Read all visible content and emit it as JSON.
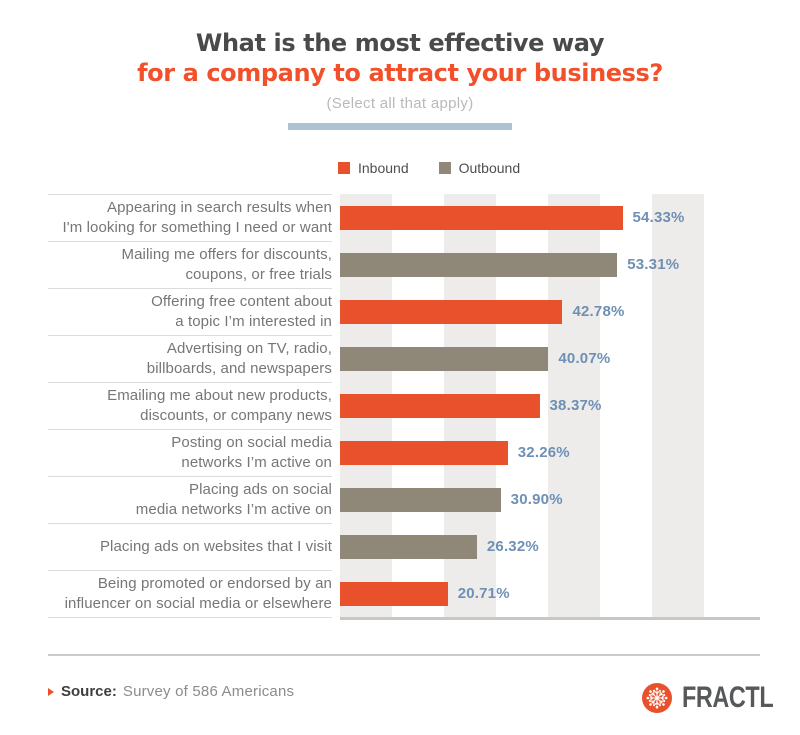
{
  "header": {
    "title_line1": "What is the most effective way",
    "title_line2": "for a company to attract your business?",
    "subtitle": "(Select all that apply)"
  },
  "legend": [
    {
      "label": "Inbound",
      "color": "#e8512c"
    },
    {
      "label": "Outbound",
      "color": "#8f8778"
    }
  ],
  "chart_data": {
    "type": "bar",
    "orientation": "horizontal",
    "title": "What is the most effective way for a company to attract your business?",
    "subtitle": "(Select all that apply)",
    "xlabel": "",
    "ylabel": "",
    "xlim": [
      0,
      70
    ],
    "grid_band_interval_percent": 10,
    "legend_position": "top",
    "series_colors": {
      "Inbound": "#e8512c",
      "Outbound": "#8f8778"
    },
    "rows": [
      {
        "label_lines": [
          "Appearing in search results when",
          "I'm looking for something I need or want"
        ],
        "series": "Inbound",
        "value": 54.33,
        "value_label": "54.33%"
      },
      {
        "label_lines": [
          "Mailing me offers for discounts,",
          "coupons, or free trials"
        ],
        "series": "Outbound",
        "value": 53.31,
        "value_label": "53.31%"
      },
      {
        "label_lines": [
          "Offering free content about",
          "a topic I’m interested in"
        ],
        "series": "Inbound",
        "value": 42.78,
        "value_label": "42.78%"
      },
      {
        "label_lines": [
          "Advertising on TV, radio,",
          "billboards, and newspapers"
        ],
        "series": "Outbound",
        "value": 40.07,
        "value_label": "40.07%"
      },
      {
        "label_lines": [
          "Emailing me about new products,",
          "discounts, or company news"
        ],
        "series": "Inbound",
        "value": 38.37,
        "value_label": "38.37%"
      },
      {
        "label_lines": [
          "Posting on social media",
          "networks I’m active on"
        ],
        "series": "Inbound",
        "value": 32.26,
        "value_label": "32.26%"
      },
      {
        "label_lines": [
          "Placing ads on social",
          "media networks I’m active on"
        ],
        "series": "Outbound",
        "value": 30.9,
        "value_label": "30.90%"
      },
      {
        "label_lines": [
          "Placing ads on websites that I visit"
        ],
        "series": "Outbound",
        "value": 26.32,
        "value_label": "26.32%"
      },
      {
        "label_lines": [
          "Being promoted or endorsed by an",
          "influencer on social media or elsewhere"
        ],
        "series": "Inbound",
        "value": 20.71,
        "value_label": "20.71%"
      }
    ]
  },
  "footer": {
    "source_prefix": "Source:",
    "source_text": "Survey of 586 Americans",
    "brand": "FRACTL"
  },
  "colors": {
    "title_dark": "#4a4a4a",
    "title_accent": "#f1502a",
    "underline": "#adc3d4",
    "value_label": "#6e90b5",
    "inbound": "#e8512c",
    "outbound": "#8f8778"
  }
}
